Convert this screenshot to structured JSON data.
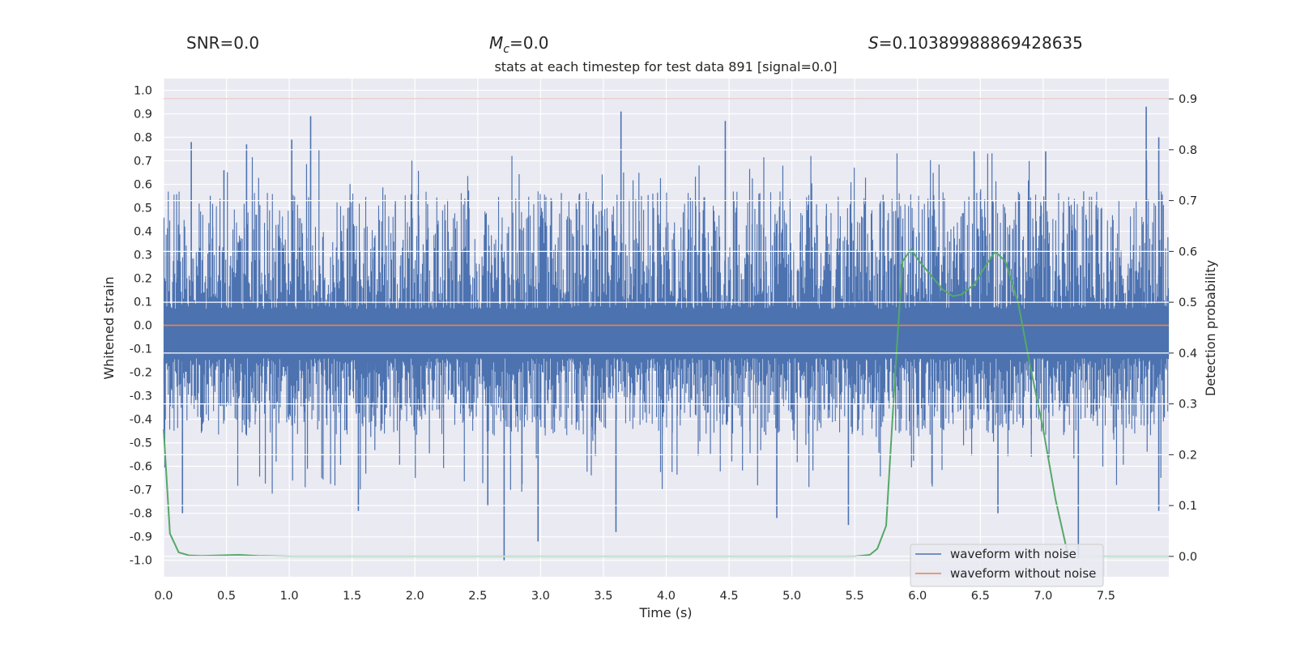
{
  "header": {
    "snr": "SNR=0.0",
    "mc_symbol": "M",
    "mc_sub": "c",
    "mc_value": "=0.0",
    "s_symbol": "S",
    "s_value": "=0.10389988869428635"
  },
  "chart_data": {
    "type": "line",
    "title": "stats at each timestep for test data 891 [signal=0.0]",
    "xlabel": "Time (s)",
    "ylabel": "Whitened strain",
    "y2label": "Detection probability",
    "xlim": [
      0.0,
      8.0
    ],
    "ylim": [
      -1.07,
      1.05
    ],
    "y2lim": [
      -0.04,
      0.94
    ],
    "x_ticks": [
      "0.0",
      "0.5",
      "1.0",
      "1.5",
      "2.0",
      "2.5",
      "3.0",
      "3.5",
      "4.0",
      "4.5",
      "5.0",
      "5.5",
      "6.0",
      "6.5",
      "7.0",
      "7.5"
    ],
    "y_ticks": [
      "1.0",
      "0.9",
      "0.8",
      "0.7",
      "0.6",
      "0.5",
      "0.4",
      "0.3",
      "0.2",
      "0.1",
      "0.0",
      "-0.1",
      "-0.2",
      "-0.3",
      "-0.4",
      "-0.5",
      "-0.6",
      "-0.7",
      "-0.8",
      "-0.9",
      "-1.0"
    ],
    "y2_ticks": [
      "0.9",
      "0.8",
      "0.7",
      "0.6",
      "0.5",
      "0.4",
      "0.3",
      "0.2",
      "0.1",
      "0.0"
    ],
    "grid": true,
    "legend_position": "bottom-right",
    "threshold": {
      "name": "threshold",
      "value": 0.9,
      "axis": "right",
      "color": "#c44e52"
    },
    "series": [
      {
        "name": "waveform with noise",
        "axis": "left",
        "color": "#4c72b0",
        "kind": "dense-noise",
        "band_low": -0.14,
        "band_high": 0.07,
        "envelope_max": 0.45,
        "envelope_min": -0.35,
        "peaks": [
          {
            "x": 0.22,
            "y": 0.78
          },
          {
            "x": 0.48,
            "y": 0.66
          },
          {
            "x": 0.66,
            "y": 0.77
          },
          {
            "x": 1.02,
            "y": 0.79
          },
          {
            "x": 1.17,
            "y": 0.89
          },
          {
            "x": 3.64,
            "y": 0.91
          },
          {
            "x": 4.47,
            "y": 0.87
          },
          {
            "x": 6.45,
            "y": 0.74
          },
          {
            "x": 7.02,
            "y": 0.74
          },
          {
            "x": 7.82,
            "y": 0.93
          },
          {
            "x": 7.92,
            "y": 0.8
          }
        ],
        "troughs": [
          {
            "x": 0.15,
            "y": -0.8
          },
          {
            "x": 1.55,
            "y": -0.79
          },
          {
            "x": 2.58,
            "y": -0.77
          },
          {
            "x": 2.71,
            "y": -1.0
          },
          {
            "x": 2.98,
            "y": -0.92
          },
          {
            "x": 3.6,
            "y": -0.88
          },
          {
            "x": 4.88,
            "y": -0.82
          },
          {
            "x": 5.45,
            "y": -0.85
          },
          {
            "x": 6.64,
            "y": -0.8
          },
          {
            "x": 7.28,
            "y": -0.99
          },
          {
            "x": 7.92,
            "y": -0.79
          }
        ]
      },
      {
        "name": "waveform without noise",
        "axis": "left",
        "color": "#dd8452",
        "x": [
          0.0,
          8.0
        ],
        "y": [
          0.0,
          0.0
        ]
      },
      {
        "name": "detection probability",
        "axis": "right",
        "color": "#55a868",
        "x": [
          0.0,
          0.05,
          0.12,
          0.2,
          0.3,
          0.45,
          0.6,
          0.75,
          1.0,
          2.0,
          3.0,
          4.0,
          5.0,
          5.5,
          5.62,
          5.68,
          5.75,
          5.82,
          5.88,
          5.95,
          6.0,
          6.1,
          6.2,
          6.28,
          6.35,
          6.45,
          6.55,
          6.62,
          6.7,
          6.8,
          6.9,
          7.0,
          7.1,
          7.2,
          7.5,
          8.0
        ],
        "y": [
          0.25,
          0.045,
          0.008,
          0.002,
          0.001,
          0.002,
          0.003,
          0.001,
          0.0,
          0.0,
          0.0,
          0.0,
          0.0,
          0.0,
          0.003,
          0.015,
          0.06,
          0.35,
          0.58,
          0.605,
          0.585,
          0.555,
          0.525,
          0.512,
          0.515,
          0.535,
          0.575,
          0.6,
          0.58,
          0.5,
          0.37,
          0.25,
          0.11,
          0.0,
          0.0,
          0.0
        ]
      }
    ]
  }
}
